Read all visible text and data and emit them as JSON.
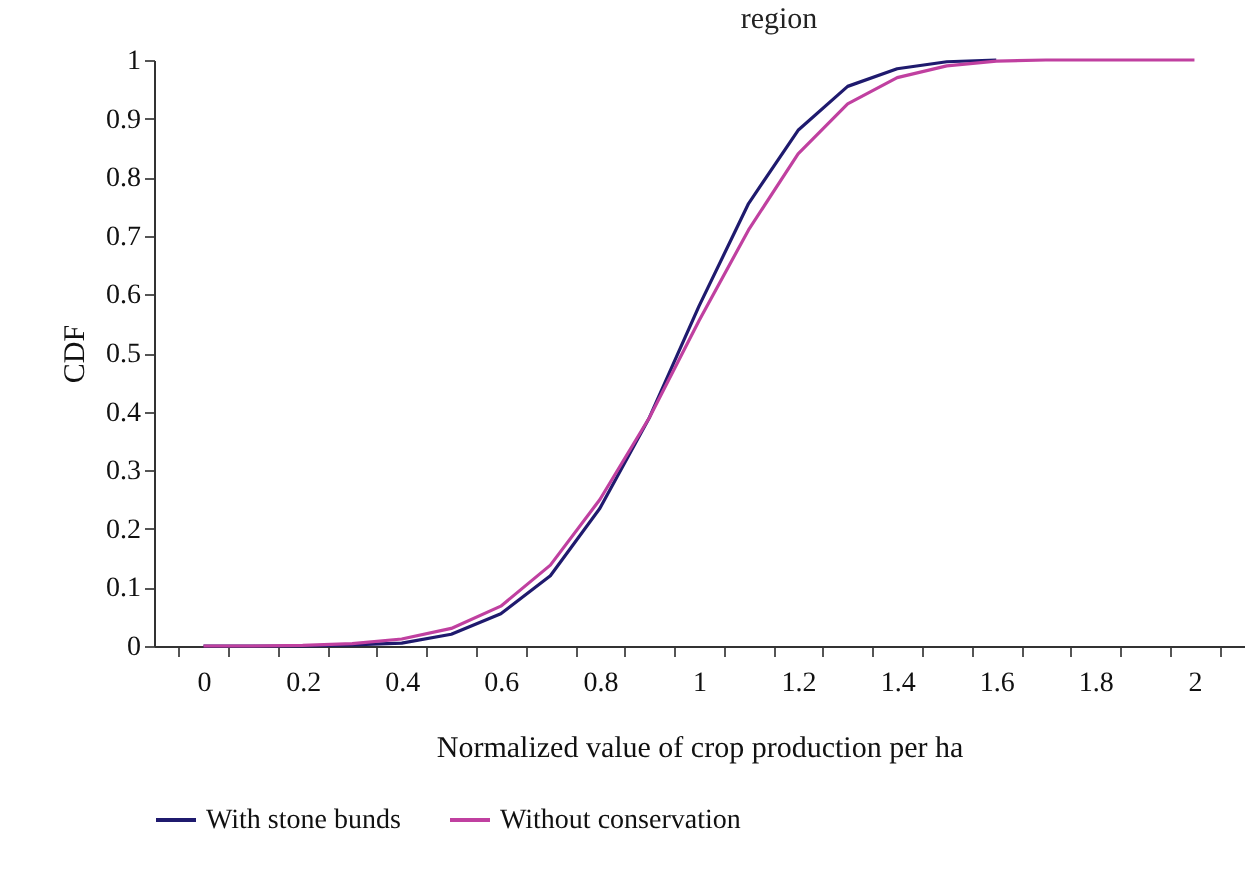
{
  "chart_data": {
    "type": "line",
    "title": "region",
    "xlabel": "Normalized value of crop production per ha",
    "ylabel": "CDF",
    "categories": [
      "0",
      null,
      "0.2",
      null,
      "0.4",
      null,
      "0.6",
      null,
      "0.8",
      null,
      "1",
      null,
      "1.2",
      null,
      "1.4",
      null,
      "1.6",
      null,
      "1.8",
      null,
      "2"
    ],
    "series": [
      {
        "name": "With stone bunds",
        "color": "#1f1a6e",
        "values": [
          0,
          0,
          0,
          0.002,
          0.005,
          0.02,
          0.055,
          0.12,
          0.235,
          0.39,
          0.58,
          0.755,
          0.88,
          0.955,
          0.985,
          0.997,
          1,
          null,
          null,
          null,
          null
        ]
      },
      {
        "name": "Without conservation",
        "color": "#c040a0",
        "values": [
          0,
          0,
          0.001,
          0.004,
          0.012,
          0.03,
          0.068,
          0.138,
          0.25,
          0.39,
          0.555,
          0.71,
          0.84,
          0.925,
          0.97,
          0.99,
          0.998,
          1,
          1,
          1,
          1
        ]
      }
    ],
    "ylim": [
      0,
      1
    ],
    "yticks": [
      0,
      0.1,
      0.2,
      0.3,
      0.4,
      0.5,
      0.6,
      0.7,
      0.8,
      0.9,
      1
    ],
    "grid": false,
    "legend": "bottom",
    "marker": "none",
    "line_style": "solid"
  }
}
